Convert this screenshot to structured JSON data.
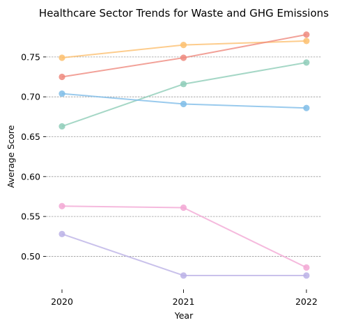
{
  "chart_data": {
    "type": "line",
    "title": "Healthcare Sector Trends for Waste and GHG Emissions",
    "xlabel": "Year",
    "ylabel": "Average Score",
    "x": [
      "2020",
      "2021",
      "2022"
    ],
    "ylim": [
      0.462,
      0.79
    ],
    "yticks": [
      0.5,
      0.55,
      0.6,
      0.65,
      0.7,
      0.75
    ],
    "ytick_labels": [
      "0.50",
      "0.55",
      "0.60",
      "0.65",
      "0.70",
      "0.75"
    ],
    "grid": "horizontal-dashed",
    "legend": "none",
    "series": [
      {
        "values": [
          0.749,
          0.765,
          0.77
        ],
        "color": "#fdbf6f"
      },
      {
        "values": [
          0.725,
          0.749,
          0.778
        ],
        "color": "#ef8a7e"
      },
      {
        "values": [
          0.663,
          0.716,
          0.743
        ],
        "color": "#8ecdb8"
      },
      {
        "values": [
          0.704,
          0.691,
          0.686
        ],
        "color": "#7fbde8"
      },
      {
        "values": [
          0.563,
          0.561,
          0.486
        ],
        "color": "#f2a7d4"
      },
      {
        "values": [
          0.528,
          0.476,
          0.476
        ],
        "color": "#bbb1e6"
      }
    ]
  }
}
